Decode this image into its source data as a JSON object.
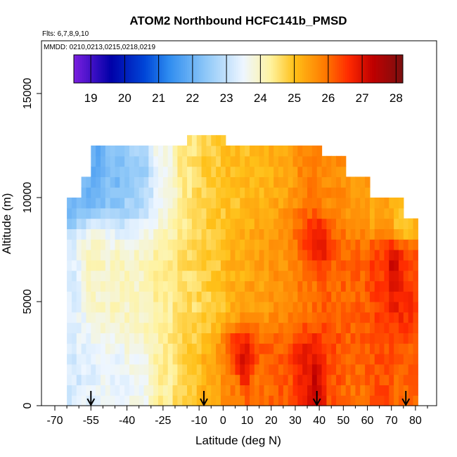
{
  "chart_data": {
    "type": "heatmap",
    "title": "ATOM2 Northbound HCFC141b_PMSD",
    "subtitle_flights": "Flts: 6,7,8,9,10",
    "subtitle_dates": "MMDD: 0210,0213,0215,0218,0219",
    "xlabel": "Latitude (deg N)",
    "ylabel": "Altitude (m)",
    "xlim": [
      -70,
      85
    ],
    "ylim": [
      0,
      17500
    ],
    "x_ticks": [
      -70,
      -55,
      -40,
      -25,
      -10,
      0,
      10,
      20,
      30,
      40,
      50,
      60,
      70,
      80
    ],
    "x_tick_labels": [
      "-70",
      "-55",
      "-40",
      "-25",
      "-10",
      "0",
      "10",
      "20",
      "30",
      "40",
      "50",
      "60",
      "70",
      "80"
    ],
    "y_ticks": [
      0,
      5000,
      10000,
      15000
    ],
    "y_tick_labels": [
      "0",
      "5000",
      "10000",
      "15000"
    ],
    "colorbar": {
      "min": 18.5,
      "max": 28.2,
      "ticks": [
        19,
        20,
        21,
        22,
        23,
        24,
        25,
        26,
        27,
        28
      ],
      "tick_labels": [
        "19",
        "20",
        "21",
        "22",
        "23",
        "24",
        "25",
        "26",
        "27",
        "28"
      ],
      "colors": [
        "#7b1fe0",
        "#0000a8",
        "#0047d8",
        "#2e8cf0",
        "#8fc8f8",
        "#eef6ff",
        "#fff3a0",
        "#ffc018",
        "#ff7a00",
        "#ff2a00",
        "#c00000",
        "#7a1010"
      ],
      "stops": [
        18.5,
        19.6,
        20.6,
        21.3,
        22.4,
        23.5,
        24.3,
        25.0,
        25.9,
        26.6,
        27.3,
        28.2
      ]
    },
    "flight_latitude_markers": [
      -55,
      -8,
      39,
      76
    ],
    "grid": false,
    "cell_size": {
      "dlat": 2.0,
      "dalt": 500
    },
    "coverage_top_altitude_m": [
      [
        -65,
        10000
      ],
      [
        -60,
        11000
      ],
      [
        -55,
        12500
      ],
      [
        -45,
        12500
      ],
      [
        -35,
        12500
      ],
      [
        -25,
        12500
      ],
      [
        -18,
        12500
      ],
      [
        -15,
        13000
      ],
      [
        0,
        12500
      ],
      [
        10,
        12500
      ],
      [
        20,
        12500
      ],
      [
        30,
        12500
      ],
      [
        40,
        12000
      ],
      [
        50,
        11000
      ],
      [
        60,
        10000
      ],
      [
        70,
        10000
      ],
      [
        74,
        9000
      ],
      [
        80,
        9000
      ]
    ],
    "coverage_lat_range": [
      -65,
      80
    ],
    "value_anchors": [
      [
        -62,
        1000,
        23.2
      ],
      [
        -62,
        6000,
        23.3
      ],
      [
        -62,
        10500,
        22.2
      ],
      [
        -55,
        1000,
        23.4
      ],
      [
        -55,
        6500,
        24.0
      ],
      [
        -55,
        11500,
        21.9
      ],
      [
        -45,
        1000,
        23.5
      ],
      [
        -45,
        5500,
        24.0
      ],
      [
        -45,
        11500,
        22.2
      ],
      [
        -35,
        1000,
        23.6
      ],
      [
        -35,
        5500,
        24.0
      ],
      [
        -35,
        11500,
        22.6
      ],
      [
        -25,
        1000,
        24.3
      ],
      [
        -25,
        5500,
        24.3
      ],
      [
        -25,
        11500,
        23.6
      ],
      [
        -15,
        1000,
        24.8
      ],
      [
        -15,
        5500,
        24.6
      ],
      [
        -15,
        11500,
        24.5
      ],
      [
        -5,
        1000,
        25.2
      ],
      [
        -5,
        5500,
        24.8
      ],
      [
        -5,
        11500,
        24.8
      ],
      [
        5,
        1000,
        25.8
      ],
      [
        5,
        6000,
        25.2
      ],
      [
        5,
        11500,
        25.0
      ],
      [
        15,
        1000,
        26.0
      ],
      [
        15,
        6000,
        25.4
      ],
      [
        15,
        11500,
        25.1
      ],
      [
        25,
        1000,
        26.2
      ],
      [
        25,
        6000,
        25.6
      ],
      [
        25,
        11500,
        25.3
      ],
      [
        35,
        1000,
        26.8
      ],
      [
        35,
        6000,
        25.9
      ],
      [
        35,
        11500,
        25.8
      ],
      [
        45,
        1000,
        26.2
      ],
      [
        45,
        6000,
        26.1
      ],
      [
        45,
        10000,
        25.7
      ],
      [
        55,
        1000,
        26.0
      ],
      [
        55,
        6000,
        26.1
      ],
      [
        55,
        10000,
        25.5
      ],
      [
        65,
        1000,
        26.3
      ],
      [
        65,
        6500,
        26.4
      ],
      [
        65,
        9500,
        25.3
      ],
      [
        75,
        1000,
        26.1
      ],
      [
        75,
        6500,
        26.4
      ],
      [
        75,
        9000,
        25.0
      ],
      [
        8,
        1800,
        27.0
      ],
      [
        38,
        800,
        27.3
      ],
      [
        40,
        7500,
        26.8
      ],
      [
        72,
        6500,
        27.2
      ]
    ]
  }
}
